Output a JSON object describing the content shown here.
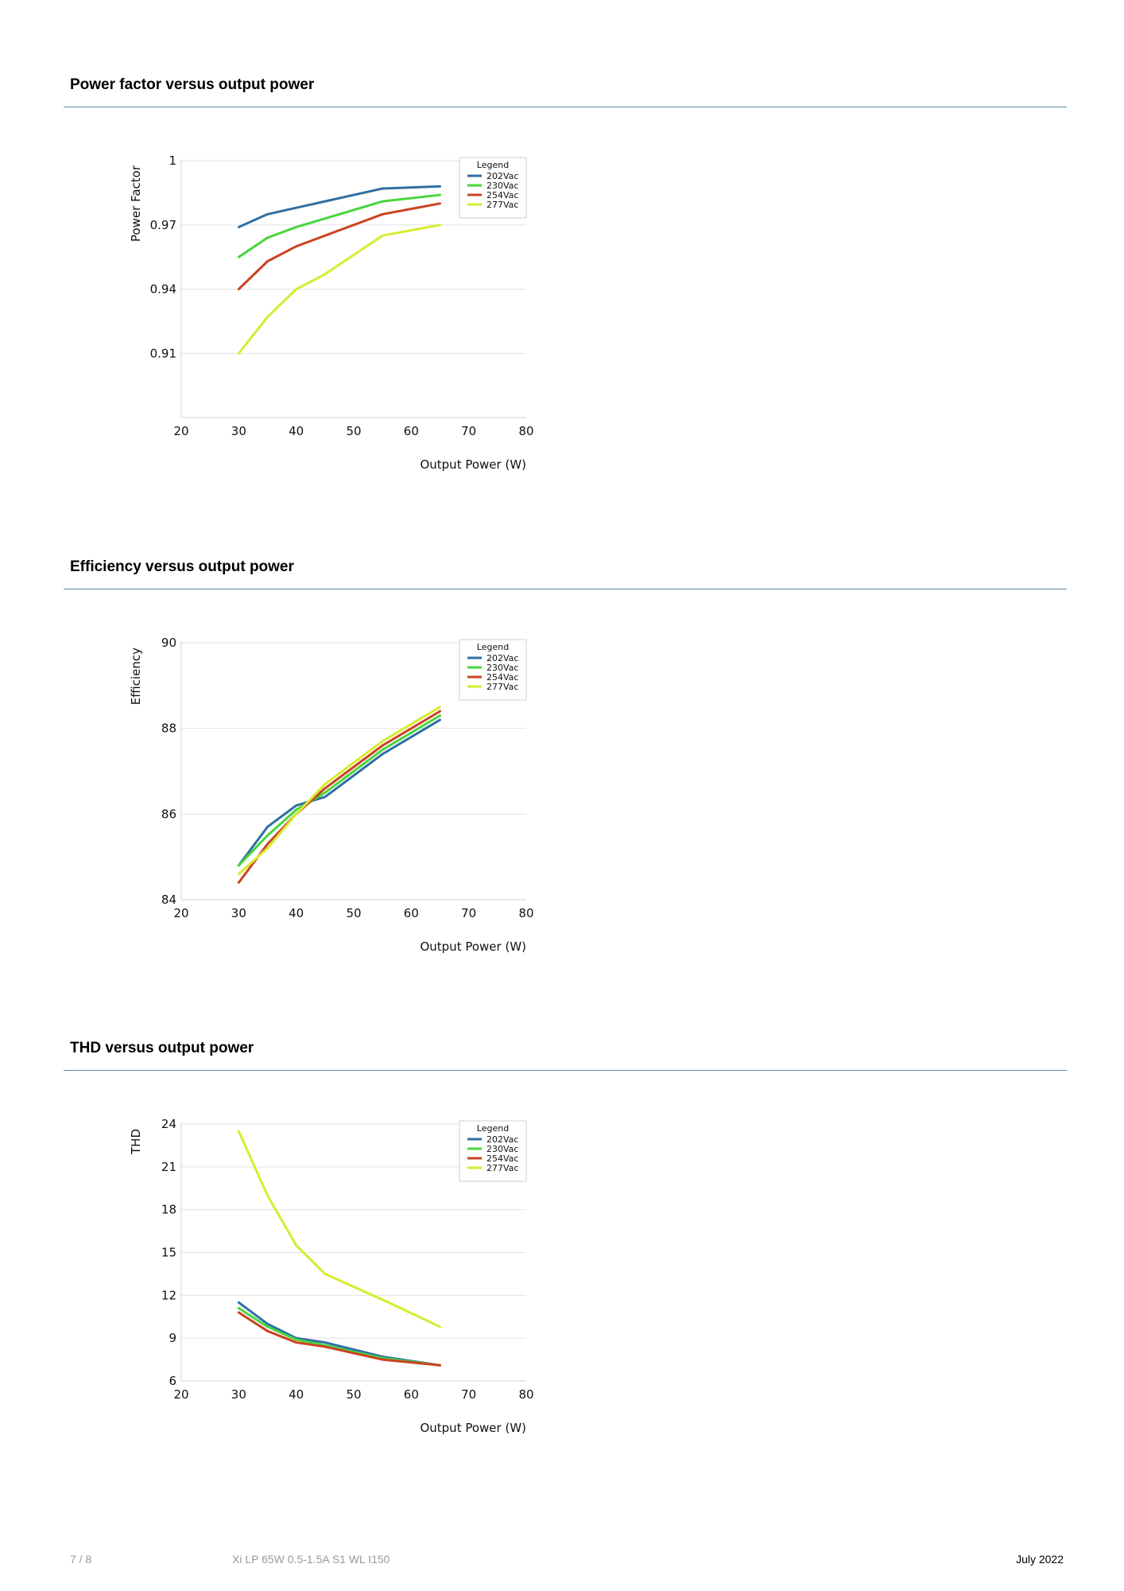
{
  "sections": [
    {
      "title": "Power factor versus output power"
    },
    {
      "title": "Efficiency versus output power"
    },
    {
      "title": "THD versus output power"
    }
  ],
  "footer": {
    "page": "7 / 8",
    "product": "Xi LP 65W 0.5-1.5A S1 WL I150",
    "date": "July 2022"
  },
  "chart_data": [
    {
      "type": "line",
      "title": "",
      "xlabel": "Output Power (W)",
      "ylabel": "Power Factor",
      "xlim": [
        20,
        80
      ],
      "ylim": [
        0.88,
        1
      ],
      "xticks": [
        20,
        30,
        40,
        50,
        60,
        70,
        80
      ],
      "yticks": [
        0.91,
        0.94,
        0.97,
        1
      ],
      "ytick_labels": [
        "0.91",
        "0.94",
        "0.97",
        "1"
      ],
      "grid": true,
      "legend": {
        "title": "Legend",
        "position": "top-right"
      },
      "series": [
        {
          "name": "202Vac",
          "color": "#2e6fa3",
          "x": [
            30,
            35,
            40,
            45,
            50,
            55,
            65
          ],
          "y": [
            0.969,
            0.975,
            0.978,
            0.981,
            0.984,
            0.987,
            0.988
          ]
        },
        {
          "name": "230Vac",
          "color": "#47d63c",
          "x": [
            30,
            35,
            40,
            45,
            50,
            55,
            65
          ],
          "y": [
            0.955,
            0.964,
            0.969,
            0.973,
            0.977,
            0.981,
            0.984
          ]
        },
        {
          "name": "254Vac",
          "color": "#cc4222",
          "x": [
            30,
            35,
            40,
            45,
            50,
            55,
            65
          ],
          "y": [
            0.94,
            0.953,
            0.96,
            0.965,
            0.97,
            0.975,
            0.98
          ]
        },
        {
          "name": "277Vac",
          "color": "#d7ec2e",
          "x": [
            30,
            35,
            40,
            45,
            55,
            65
          ],
          "y": [
            0.91,
            0.927,
            0.94,
            0.947,
            0.965,
            0.97
          ]
        }
      ]
    },
    {
      "type": "line",
      "title": "",
      "xlabel": "Output Power (W)",
      "ylabel": "Efficiency",
      "xlim": [
        20,
        80
      ],
      "ylim": [
        84,
        90
      ],
      "xticks": [
        20,
        30,
        40,
        50,
        60,
        70,
        80
      ],
      "yticks": [
        84,
        86,
        88,
        90
      ],
      "ytick_labels": [
        "84",
        "86",
        "88",
        "90"
      ],
      "grid": true,
      "legend": {
        "title": "Legend",
        "position": "top-right"
      },
      "series": [
        {
          "name": "202Vac",
          "color": "#2e6fa3",
          "x": [
            30,
            35,
            40,
            45,
            50,
            55,
            65
          ],
          "y": [
            84.8,
            85.7,
            86.2,
            86.4,
            86.9,
            87.4,
            88.2
          ]
        },
        {
          "name": "230Vac",
          "color": "#47d63c",
          "x": [
            30,
            35,
            40,
            45,
            50,
            55,
            65
          ],
          "y": [
            84.8,
            85.5,
            86.1,
            86.5,
            87.0,
            87.5,
            88.3
          ]
        },
        {
          "name": "254Vac",
          "color": "#cc4222",
          "x": [
            30,
            35,
            40,
            45,
            50,
            55,
            65
          ],
          "y": [
            84.4,
            85.3,
            86.0,
            86.6,
            87.1,
            87.6,
            88.4
          ]
        },
        {
          "name": "277Vac",
          "color": "#d7ec2e",
          "x": [
            30,
            35,
            40,
            45,
            50,
            55,
            65
          ],
          "y": [
            84.6,
            85.2,
            86.0,
            86.7,
            87.2,
            87.7,
            88.5
          ]
        }
      ]
    },
    {
      "type": "line",
      "title": "",
      "xlabel": "Output Power (W)",
      "ylabel": "THD",
      "xlim": [
        20,
        80
      ],
      "ylim": [
        6,
        24
      ],
      "xticks": [
        20,
        30,
        40,
        50,
        60,
        70,
        80
      ],
      "yticks": [
        6,
        9,
        12,
        15,
        18,
        21,
        24
      ],
      "ytick_labels": [
        "6",
        "9",
        "12",
        "15",
        "18",
        "21",
        "24"
      ],
      "grid": true,
      "legend": {
        "title": "Legend",
        "position": "top-right"
      },
      "series": [
        {
          "name": "202Vac",
          "color": "#2e6fa3",
          "x": [
            30,
            35,
            40,
            45,
            55,
            65
          ],
          "y": [
            11.5,
            10.0,
            9.0,
            8.7,
            7.7,
            7.1
          ]
        },
        {
          "name": "230Vac",
          "color": "#47d63c",
          "x": [
            30,
            35,
            40,
            45,
            55,
            65
          ],
          "y": [
            11.1,
            9.8,
            8.9,
            8.5,
            7.6,
            7.1
          ]
        },
        {
          "name": "254Vac",
          "color": "#cc4222",
          "x": [
            30,
            35,
            40,
            45,
            55,
            65
          ],
          "y": [
            10.8,
            9.5,
            8.7,
            8.4,
            7.5,
            7.1
          ]
        },
        {
          "name": "277Vac",
          "color": "#d7ec2e",
          "x": [
            30,
            35,
            40,
            45,
            55,
            65
          ],
          "y": [
            23.5,
            19.0,
            15.5,
            13.5,
            11.7,
            9.8
          ]
        }
      ]
    }
  ]
}
